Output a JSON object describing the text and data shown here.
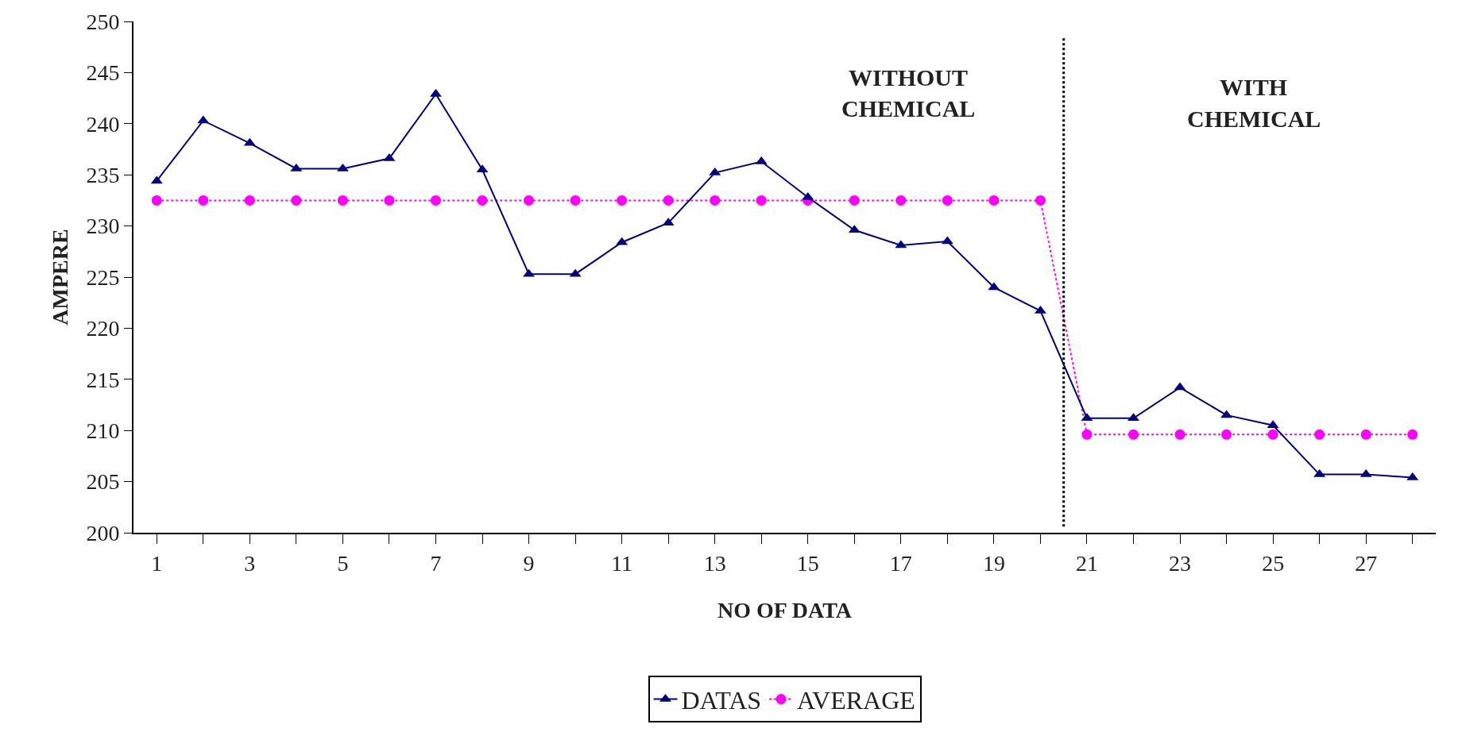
{
  "chart_data": {
    "type": "line",
    "xlabel": "NO OF DATA",
    "ylabel": "AMPERE",
    "x": [
      1,
      2,
      3,
      4,
      5,
      6,
      7,
      8,
      9,
      10,
      11,
      12,
      13,
      14,
      15,
      16,
      17,
      18,
      19,
      20,
      21,
      22,
      23,
      24,
      25,
      26,
      27,
      28
    ],
    "series": [
      {
        "name": "DATAS",
        "color": "#000080",
        "marker": "triangle",
        "line_style": "solid",
        "values": [
          234.4,
          240.3,
          238.1,
          235.6,
          235.6,
          236.6,
          242.9,
          235.5,
          225.3,
          225.3,
          228.4,
          230.3,
          235.2,
          236.3,
          232.8,
          229.6,
          228.1,
          228.5,
          224.0,
          221.7,
          211.2,
          211.2,
          214.2,
          211.5,
          210.5,
          205.7,
          205.7,
          205.4
        ]
      },
      {
        "name": "AVERAGE",
        "color": "#ff00ff",
        "marker": "circle",
        "line_style": "dotted",
        "values": [
          232.5,
          232.5,
          232.5,
          232.5,
          232.5,
          232.5,
          232.5,
          232.5,
          232.5,
          232.5,
          232.5,
          232.5,
          232.5,
          232.5,
          232.5,
          232.5,
          232.5,
          232.5,
          232.5,
          232.5,
          209.6,
          209.6,
          209.6,
          209.6,
          209.6,
          209.6,
          209.6,
          209.6
        ]
      }
    ],
    "ref_lines": [
      {
        "axis": "x",
        "value": 20.5,
        "color": "#000000",
        "line_style": "dotted"
      }
    ],
    "annotations": [
      "WITHOUT\nCHEMICAL",
      "WITH\nCHEMICAL"
    ],
    "xlim": [
      0.5,
      28.5
    ],
    "xticks": [
      1,
      {
        "value": 2,
        "label": null
      },
      3,
      {
        "value": 4,
        "label": null
      },
      5,
      {
        "value": 6,
        "label": null
      },
      7,
      {
        "value": 8,
        "label": null
      },
      9,
      {
        "value": 10,
        "label": null
      },
      11,
      {
        "value": 12,
        "label": null
      },
      13,
      {
        "value": 14,
        "label": null
      },
      15,
      {
        "value": 16,
        "label": null
      },
      17,
      {
        "value": 18,
        "label": null
      },
      19,
      {
        "value": 20,
        "label": null
      },
      21,
      {
        "value": 22,
        "label": null
      },
      23,
      {
        "value": 24,
        "label": null
      },
      25,
      {
        "value": 26,
        "label": null
      },
      27,
      {
        "value": 28,
        "label": null
      }
    ],
    "ylim": [
      200,
      250
    ],
    "yticks": [
      200,
      205,
      210,
      215,
      220,
      225,
      230,
      235,
      240,
      245,
      250
    ],
    "legend": "bottom"
  }
}
